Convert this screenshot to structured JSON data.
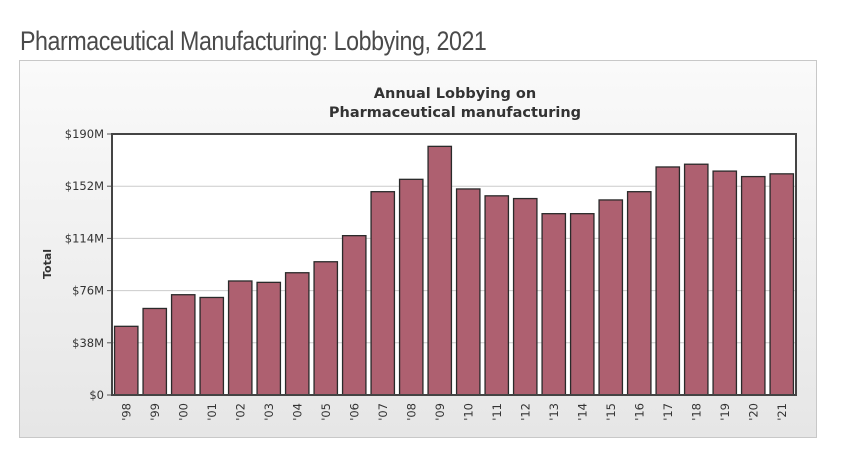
{
  "page": {
    "title": "Pharmaceutical Manufacturing: Lobbying, 2021"
  },
  "colors": {
    "bar_fill": "#ae6070",
    "bar_stroke": "#2a2a2a",
    "plot_background": "#ffffff",
    "gridline": "#cccccc"
  },
  "chart_data": {
    "type": "bar",
    "title_lines": [
      "Annual Lobbying on",
      "Pharmaceutical manufacturing"
    ],
    "xlabel": "",
    "ylabel": "Total",
    "ylim": [
      0,
      190
    ],
    "y_unit": "millions USD",
    "y_ticks": [
      {
        "value": 0,
        "label": "$0"
      },
      {
        "value": 38,
        "label": "$38M"
      },
      {
        "value": 76,
        "label": "$76M"
      },
      {
        "value": 114,
        "label": "$114M"
      },
      {
        "value": 152,
        "label": "$152M"
      },
      {
        "value": 190,
        "label": "$190M"
      }
    ],
    "grid": true,
    "legend": "none",
    "categories": [
      "'98",
      "'99",
      "'00",
      "'01",
      "'02",
      "'03",
      "'04",
      "'05",
      "'06",
      "'07",
      "'08",
      "'09",
      "'10",
      "'11",
      "'12",
      "'13",
      "'14",
      "'15",
      "'16",
      "'17",
      "'18",
      "'19",
      "'20",
      "'21"
    ],
    "values": [
      50,
      63,
      73,
      71,
      83,
      82,
      89,
      97,
      116,
      148,
      157,
      181,
      150,
      145,
      143,
      132,
      132,
      142,
      148,
      166,
      168,
      163,
      159,
      161
    ]
  }
}
